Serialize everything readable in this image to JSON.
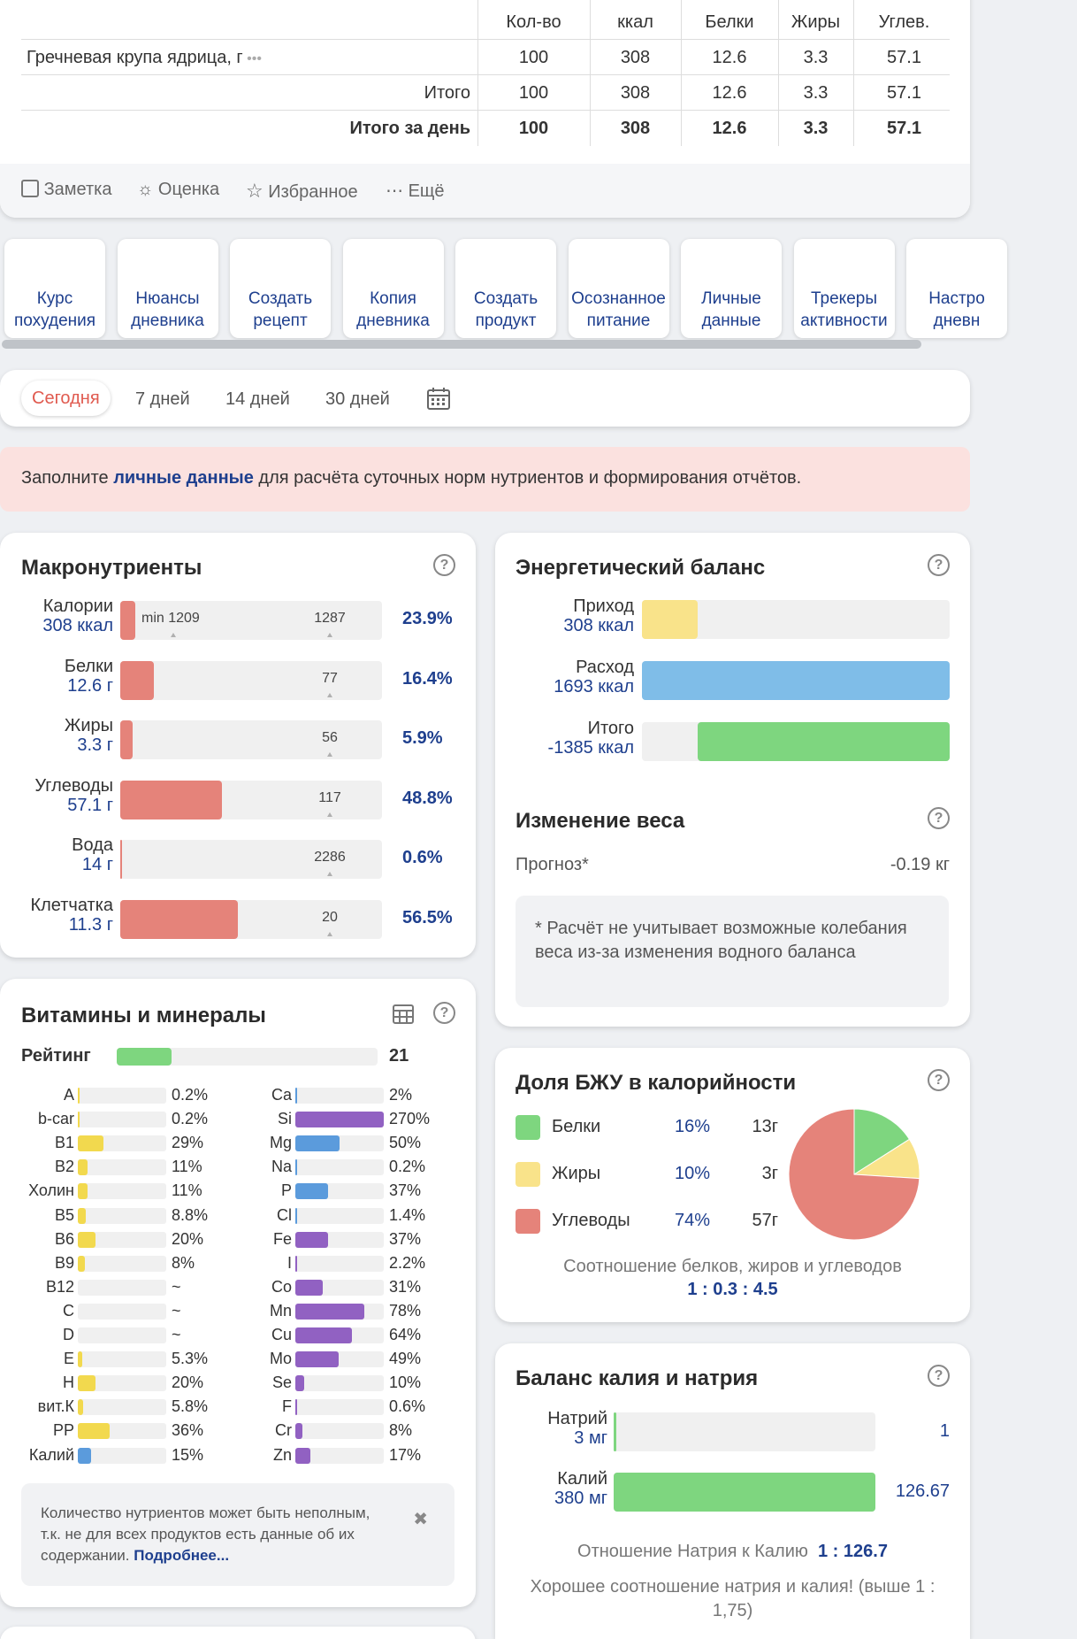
{
  "table": {
    "headers": [
      "Кол-во",
      "ккал",
      "Белки",
      "Жиры",
      "Углев."
    ],
    "rows": [
      {
        "name": "Гречневая крупа ядрица, г",
        "values": [
          "100",
          "308",
          "12.6",
          "3.3",
          "57.1"
        ]
      },
      {
        "name": "Итого",
        "values": [
          "100",
          "308",
          "12.6",
          "3.3",
          "57.1"
        ]
      },
      {
        "name": "Итого за день",
        "values": [
          "100",
          "308",
          "12.6",
          "3.3",
          "57.1"
        ]
      }
    ]
  },
  "actions": {
    "note": "Заметка",
    "rating": "Оценка",
    "favorite": "Избранное",
    "more": "Ещё"
  },
  "shortcuts": [
    {
      "line1": "Курс",
      "line2": "похудения",
      "icon": "stack-icon"
    },
    {
      "line1": "Нюансы",
      "line2": "дневника",
      "icon": "book-icon"
    },
    {
      "line1": "Создать",
      "line2": "рецепт",
      "icon": "chef-hat-icon"
    },
    {
      "line1": "Копия",
      "line2": "дневника",
      "icon": "copy-doc-icon"
    },
    {
      "line1": "Создать",
      "line2": "продукт",
      "icon": "apple-icon"
    },
    {
      "line1": "Осознанное",
      "line2": "питание",
      "icon": "lightbulb-icon"
    },
    {
      "line1": "Личные",
      "line2": "данные",
      "icon": "user-icon"
    },
    {
      "line1": "Трекеры",
      "line2": "активности",
      "icon": "tracker-icon"
    },
    {
      "line1": "Настро",
      "line2": "дневн",
      "icon": "settings-icon"
    }
  ],
  "periods": {
    "today": "Сегодня",
    "d7": "7 дней",
    "d14": "14 дней",
    "d30": "30 дней"
  },
  "alert": {
    "pre": "Заполните ",
    "link": "личные данные",
    "post": " для расчёта суточных норм нутриентов и формирования отчётов."
  },
  "macros": {
    "title": "Макронутриенты",
    "min_label": "min 1209",
    "items": [
      {
        "label": "Калории",
        "value": "308 ккал",
        "norm": "1287",
        "pct": "23.9%",
        "fill": 0.059
      },
      {
        "label": "Белки",
        "value": "12.6 г",
        "norm": "77",
        "pct": "16.4%",
        "fill": 0.13
      },
      {
        "label": "Жиры",
        "value": "3.3 г",
        "norm": "56",
        "pct": "5.9%",
        "fill": 0.048
      },
      {
        "label": "Углеводы",
        "value": "57.1 г",
        "norm": "117",
        "pct": "48.8%",
        "fill": 0.39
      },
      {
        "label": "Вода",
        "value": "14 г",
        "norm": "2286",
        "pct": "0.6%",
        "fill": 0.006
      },
      {
        "label": "Клетчатка",
        "value": "11.3 г",
        "norm": "20",
        "pct": "56.5%",
        "fill": 0.45
      }
    ]
  },
  "energy": {
    "title": "Энергетический баланс",
    "items": [
      {
        "label": "Приход",
        "value": "308 ккал",
        "start": 0,
        "fill": 0.18,
        "color": "#f9e38a"
      },
      {
        "label": "Расход",
        "value": "1693 ккал",
        "start": 0,
        "fill": 1,
        "color": "#7fbde8"
      },
      {
        "label": "Итого",
        "value": "-1385 ккал",
        "start": 0.18,
        "fill": 0.82,
        "color": "#7ed67f"
      }
    ]
  },
  "weight": {
    "title": "Изменение веса",
    "label": "Прогноз*",
    "value": "-0.19 кг",
    "note": "* Расчёт не учитывает возможные колебания веса из-за изменения водного баланса"
  },
  "vitamins": {
    "title": "Витамины и минералы",
    "rating_label": "Рейтинг",
    "rating_value": "21",
    "rating_fill": 0.21,
    "left": [
      {
        "n": "A",
        "p": "0.2%",
        "f": 0.002
      },
      {
        "n": "b-car",
        "p": "0.2%",
        "f": 0.002
      },
      {
        "n": "B1",
        "p": "29%",
        "f": 0.29
      },
      {
        "n": "B2",
        "p": "11%",
        "f": 0.11
      },
      {
        "n": "Холин",
        "p": "11%",
        "f": 0.11
      },
      {
        "n": "B5",
        "p": "8.8%",
        "f": 0.088
      },
      {
        "n": "B6",
        "p": "20%",
        "f": 0.2
      },
      {
        "n": "B9",
        "p": "8%",
        "f": 0.08
      },
      {
        "n": "B12",
        "p": "~",
        "f": 0
      },
      {
        "n": "C",
        "p": "~",
        "f": 0
      },
      {
        "n": "D",
        "p": "~",
        "f": 0
      },
      {
        "n": "E",
        "p": "5.3%",
        "f": 0.053
      },
      {
        "n": "H",
        "p": "20%",
        "f": 0.2
      },
      {
        "n": "вит.К",
        "p": "5.8%",
        "f": 0.058
      },
      {
        "n": "PP",
        "p": "36%",
        "f": 0.36
      },
      {
        "n": "Калий",
        "p": "15%",
        "f": 0.15,
        "c": "blue"
      }
    ],
    "right": [
      {
        "n": "Ca",
        "p": "2%",
        "f": 0.02,
        "c": "blue"
      },
      {
        "n": "Si",
        "p": "270%",
        "f": 1,
        "c": "purple"
      },
      {
        "n": "Mg",
        "p": "50%",
        "f": 0.5,
        "c": "blue"
      },
      {
        "n": "Na",
        "p": "0.2%",
        "f": 0.002,
        "c": "blue"
      },
      {
        "n": "P",
        "p": "37%",
        "f": 0.37,
        "c": "blue"
      },
      {
        "n": "Cl",
        "p": "1.4%",
        "f": 0.014,
        "c": "blue"
      },
      {
        "n": "Fe",
        "p": "37%",
        "f": 0.37,
        "c": "purple"
      },
      {
        "n": "I",
        "p": "2.2%",
        "f": 0.022,
        "c": "purple"
      },
      {
        "n": "Co",
        "p": "31%",
        "f": 0.31,
        "c": "purple"
      },
      {
        "n": "Mn",
        "p": "78%",
        "f": 0.78,
        "c": "purple"
      },
      {
        "n": "Cu",
        "p": "64%",
        "f": 0.64,
        "c": "purple"
      },
      {
        "n": "Mo",
        "p": "49%",
        "f": 0.49,
        "c": "purple"
      },
      {
        "n": "Se",
        "p": "10%",
        "f": 0.1,
        "c": "purple"
      },
      {
        "n": "F",
        "p": "0.6%",
        "f": 0.006,
        "c": "purple"
      },
      {
        "n": "Cr",
        "p": "8%",
        "f": 0.08,
        "c": "purple"
      },
      {
        "n": "Zn",
        "p": "17%",
        "f": 0.17,
        "c": "purple"
      }
    ],
    "note": "Количество нутриентов может быть неполным, т.к. не для всех продуктов есть данные об их содержании. ",
    "note_link": "Подробнее..."
  },
  "bju": {
    "title": "Доля БЖУ в калорийности",
    "items": [
      {
        "name": "Белки",
        "pct": "16%",
        "grams": "13г",
        "color": "#7ed67f"
      },
      {
        "name": "Жиры",
        "pct": "10%",
        "grams": "3г",
        "color": "#f9e38a"
      },
      {
        "name": "Углеводы",
        "pct": "74%",
        "grams": "57г",
        "color": "#e5837a"
      }
    ],
    "ratio_label": "Соотношение белков, жиров и углеводов",
    "ratio": "1 : 0.3 : 4.5"
  },
  "kna": {
    "title": "Баланс калия и натрия",
    "items": [
      {
        "label": "Натрий",
        "value": "3 мг",
        "num": "1",
        "fill": 0.008
      },
      {
        "label": "Калий",
        "value": "380 мг",
        "num": "126.67",
        "fill": 1
      }
    ],
    "ratio_label": "Отношение Натрия к Калию",
    "ratio": "1 : 126.7",
    "verdict": "Хорошее соотношение натрия и калия! (выше 1 : 1,75)"
  },
  "colors": {
    "yellow": "#f2d94e",
    "blue": "#5b9bdc",
    "purple": "#9161c2",
    "red": "#e5837a",
    "green": "#7ed67f",
    "accent": "#e05a4f"
  }
}
